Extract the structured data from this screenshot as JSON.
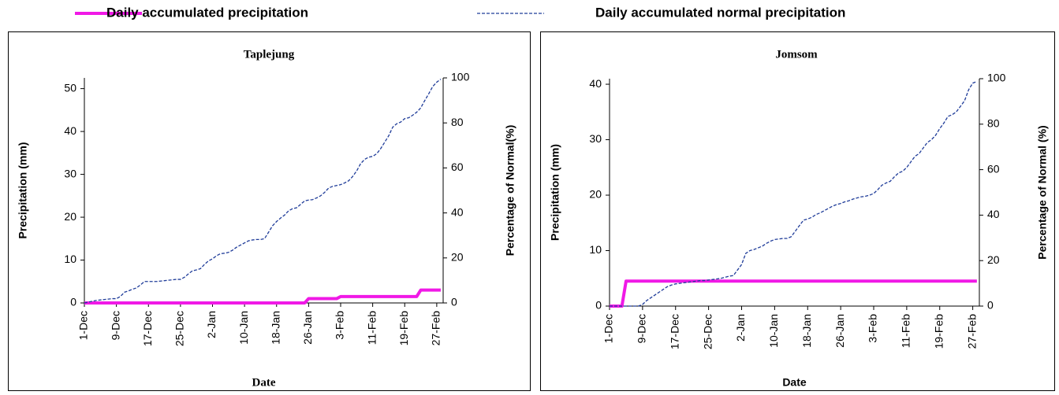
{
  "chart_data": [
    {
      "type": "line",
      "title": "Taplejung",
      "xlabel": "Date",
      "ylabel": "Precipitation (mm)",
      "y2label": "Percentage of Normal(%)",
      "categories": [
        "1-Dec",
        null,
        null,
        null,
        null,
        null,
        null,
        null,
        "9-Dec",
        null,
        null,
        null,
        null,
        null,
        null,
        null,
        "17-Dec",
        null,
        null,
        null,
        null,
        null,
        null,
        null,
        "25-Dec",
        null,
        null,
        null,
        null,
        null,
        null,
        null,
        "2-Jan",
        null,
        null,
        null,
        null,
        null,
        null,
        null,
        "10-Jan",
        null,
        null,
        null,
        null,
        null,
        null,
        null,
        "18-Jan",
        null,
        null,
        null,
        null,
        null,
        null,
        null,
        "26-Jan",
        null,
        null,
        null,
        null,
        null,
        null,
        null,
        "3-Feb",
        null,
        null,
        null,
        null,
        null,
        null,
        null,
        "11-Feb",
        null,
        null,
        null,
        null,
        null,
        null,
        null,
        "19-Feb",
        null,
        null,
        null,
        null,
        null,
        null,
        null,
        "27-Feb",
        null
      ],
      "ylim": [
        0,
        52.5
      ],
      "yticks": [
        0,
        10,
        20,
        30,
        40,
        50
      ],
      "y2lim": [
        0,
        100
      ],
      "y2ticks": [
        0,
        20,
        40,
        60,
        80,
        100
      ],
      "series": [
        {
          "name": "Daily accumulated precipitation",
          "color": "#f019e6",
          "linestyle": "solid",
          "values": [
            0,
            0,
            0,
            0,
            0,
            0,
            0,
            0,
            0,
            0,
            0,
            0,
            0,
            0,
            0,
            0,
            0,
            0,
            0,
            0,
            0,
            0,
            0,
            0,
            0,
            0,
            0,
            0,
            0,
            0,
            0,
            0,
            0,
            0,
            0,
            0,
            0,
            0,
            0,
            0,
            0,
            0,
            0,
            0,
            0,
            0,
            0,
            0,
            0,
            0,
            0,
            0,
            0,
            0,
            0,
            0,
            1,
            1,
            1,
            1,
            1,
            1,
            1,
            1,
            1.5,
            1.5,
            1.5,
            1.5,
            1.5,
            1.5,
            1.5,
            1.5,
            1.5,
            1.5,
            1.5,
            1.5,
            1.5,
            1.5,
            1.5,
            1.5,
            1.5,
            1.5,
            1.5,
            1.5,
            3,
            3,
            3,
            3,
            3,
            3
          ]
        },
        {
          "name": "Daily accumulated normal precipitation",
          "color": "#1f3c99",
          "linestyle": "dashed",
          "values": [
            0,
            0.2,
            0.4,
            0.6,
            0.7,
            0.8,
            0.9,
            1,
            1,
            1.5,
            2.5,
            2.8,
            3.2,
            3.5,
            4.2,
            5,
            5,
            5,
            5,
            5.1,
            5.2,
            5.3,
            5.4,
            5.5,
            5.5,
            6,
            6.8,
            7.5,
            7.7,
            8,
            9,
            9.8,
            10.3,
            11,
            11.5,
            11.6,
            11.8,
            12.3,
            13,
            13.5,
            14,
            14.5,
            14.7,
            14.8,
            14.8,
            15,
            16.5,
            18,
            19,
            19.8,
            20.5,
            21.5,
            22,
            22.2,
            23,
            23.8,
            24,
            24.1,
            24.5,
            25,
            25.8,
            26.8,
            27.2,
            27.4,
            27.6,
            28,
            28.5,
            29.5,
            30.8,
            32.5,
            33.5,
            34,
            34.2,
            34.8,
            36,
            37.5,
            39,
            41,
            41.8,
            42.2,
            43,
            43.2,
            43.8,
            44.5,
            45.5,
            47.2,
            48.8,
            50.5,
            51.5,
            52.2
          ]
        }
      ]
    },
    {
      "type": "line",
      "title": "Jomsom",
      "xlabel": "Date",
      "ylabel": "Precipitation (mm)",
      "y2label": "Percentage of Normal (%)",
      "categories": [
        "1-Dec",
        null,
        null,
        null,
        null,
        null,
        null,
        null,
        "9-Dec",
        null,
        null,
        null,
        null,
        null,
        null,
        null,
        "17-Dec",
        null,
        null,
        null,
        null,
        null,
        null,
        null,
        "25-Dec",
        null,
        null,
        null,
        null,
        null,
        null,
        null,
        "2-Jan",
        null,
        null,
        null,
        null,
        null,
        null,
        null,
        "10-Jan",
        null,
        null,
        null,
        null,
        null,
        null,
        null,
        "18-Jan",
        null,
        null,
        null,
        null,
        null,
        null,
        null,
        "26-Jan",
        null,
        null,
        null,
        null,
        null,
        null,
        null,
        "3-Feb",
        null,
        null,
        null,
        null,
        null,
        null,
        null,
        "11-Feb",
        null,
        null,
        null,
        null,
        null,
        null,
        null,
        "19-Feb",
        null,
        null,
        null,
        null,
        null,
        null,
        null,
        "27-Feb",
        null
      ],
      "ylim": [
        0,
        41
      ],
      "yticks": [
        0,
        10,
        20,
        30,
        40
      ],
      "y2lim": [
        0,
        100
      ],
      "y2ticks": [
        0,
        20,
        40,
        60,
        80,
        100
      ],
      "series": [
        {
          "color": "#f019e6",
          "linestyle": "solid",
          "values": [
            0,
            0,
            0,
            0,
            4.5,
            4.5,
            4.5,
            4.5,
            4.5,
            4.5,
            4.5,
            4.5,
            4.5,
            4.5,
            4.5,
            4.5,
            4.5,
            4.5,
            4.5,
            4.5,
            4.5,
            4.5,
            4.5,
            4.5,
            4.5,
            4.5,
            4.5,
            4.5,
            4.5,
            4.5,
            4.5,
            4.5,
            4.5,
            4.5,
            4.5,
            4.5,
            4.5,
            4.5,
            4.5,
            4.5,
            4.5,
            4.5,
            4.5,
            4.5,
            4.5,
            4.5,
            4.5,
            4.5,
            4.5,
            4.5,
            4.5,
            4.5,
            4.5,
            4.5,
            4.5,
            4.5,
            4.5,
            4.5,
            4.5,
            4.5,
            4.5,
            4.5,
            4.5,
            4.5,
            4.5,
            4.5,
            4.5,
            4.5,
            4.5,
            4.5,
            4.5,
            4.5,
            4.5,
            4.5,
            4.5,
            4.5,
            4.5,
            4.5,
            4.5,
            4.5,
            4.5,
            4.5,
            4.5,
            4.5,
            4.5,
            4.5,
            4.5,
            4.5,
            4.5,
            4.5
          ]
        },
        {
          "color": "#1f3c99",
          "linestyle": "dashed",
          "values": [
            0,
            0,
            0,
            0,
            0,
            0,
            0,
            0,
            0.3,
            1,
            1.5,
            2,
            2.5,
            3,
            3.5,
            3.8,
            4,
            4.1,
            4.2,
            4.3,
            4.4,
            4.5,
            4.6,
            4.6,
            4.7,
            4.8,
            4.9,
            5,
            5.2,
            5.4,
            5.5,
            6.5,
            7.5,
            9.5,
            10,
            10.2,
            10.5,
            10.8,
            11.3,
            11.7,
            12,
            12.1,
            12.2,
            12.2,
            12.5,
            13.5,
            14.5,
            15.5,
            15.7,
            16,
            16.5,
            16.8,
            17.2,
            17.6,
            18,
            18.3,
            18.5,
            18.8,
            19,
            19.3,
            19.5,
            19.7,
            19.8,
            20,
            20.3,
            21,
            21.8,
            22.2,
            22.5,
            23.3,
            24,
            24.3,
            25,
            26,
            27,
            27.5,
            28.5,
            29.5,
            30,
            30.8,
            32,
            33,
            34.2,
            34.5,
            35,
            36,
            37,
            39,
            40.2,
            40.5
          ]
        }
      ]
    }
  ]
}
